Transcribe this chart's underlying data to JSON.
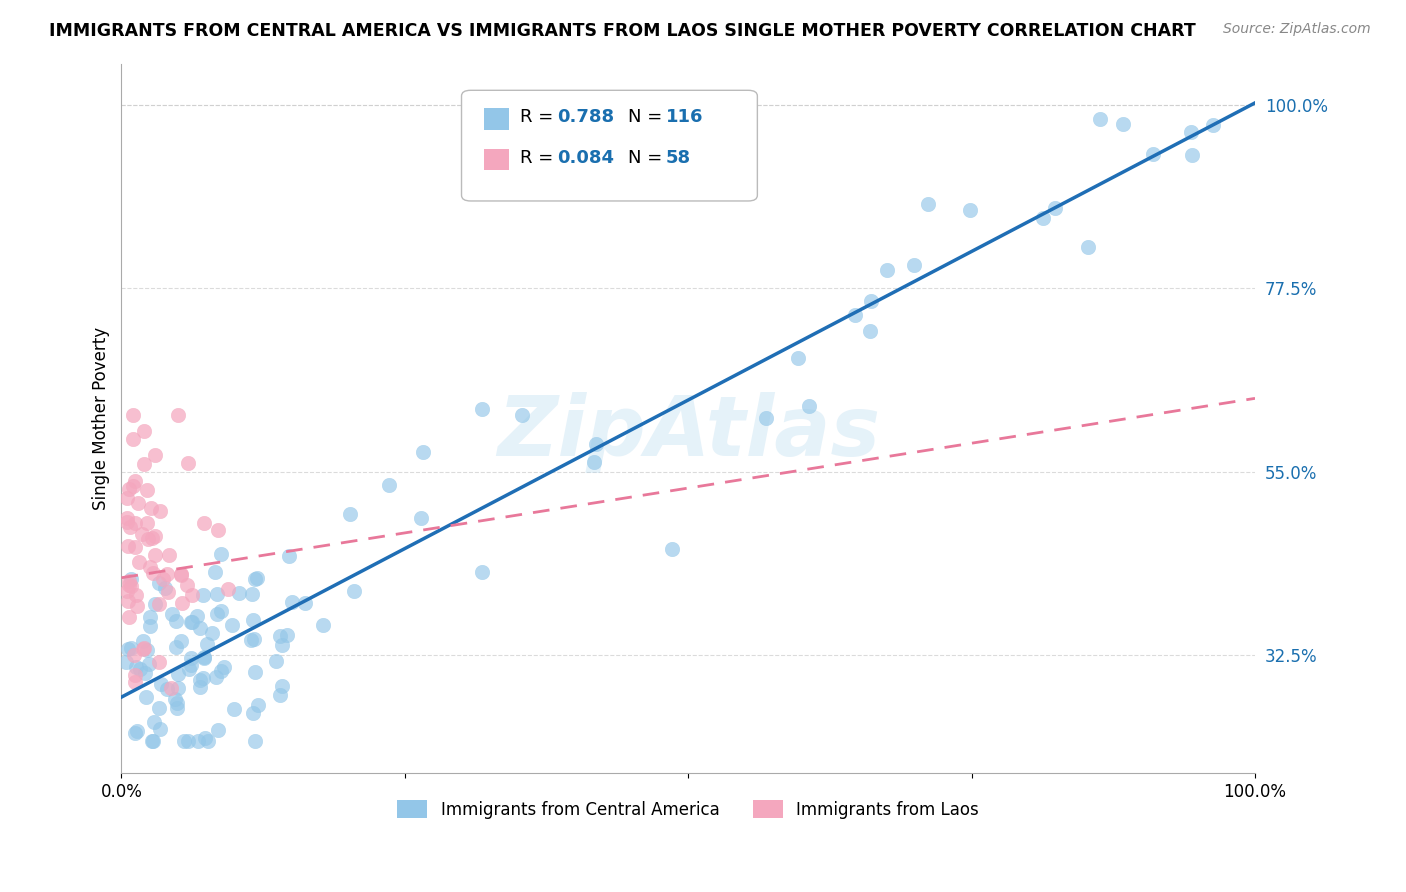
{
  "title": "IMMIGRANTS FROM CENTRAL AMERICA VS IMMIGRANTS FROM LAOS SINGLE MOTHER POVERTY CORRELATION CHART",
  "source_text": "Source: ZipAtlas.com",
  "ylabel": "Single Mother Poverty",
  "watermark": "ZipAtlas",
  "r_central": 0.788,
  "n_central": 116,
  "r_laos": 0.084,
  "n_laos": 58,
  "xlim": [
    0,
    1.0
  ],
  "ylim": [
    0.18,
    1.05
  ],
  "yticks_right": [
    0.325,
    0.55,
    0.775,
    1.0
  ],
  "yticklabels_right": [
    "32.5%",
    "55.0%",
    "77.5%",
    "100.0%"
  ],
  "blue_color": "#93c6e8",
  "pink_color": "#f4a7be",
  "blue_line_color": "#1f6eb5",
  "pink_line_color": "#e8789a",
  "legend_r_color": "#1a6faf",
  "background_color": "#ffffff",
  "grid_color": "#cccccc",
  "seed_ca": 42,
  "seed_laos": 99
}
